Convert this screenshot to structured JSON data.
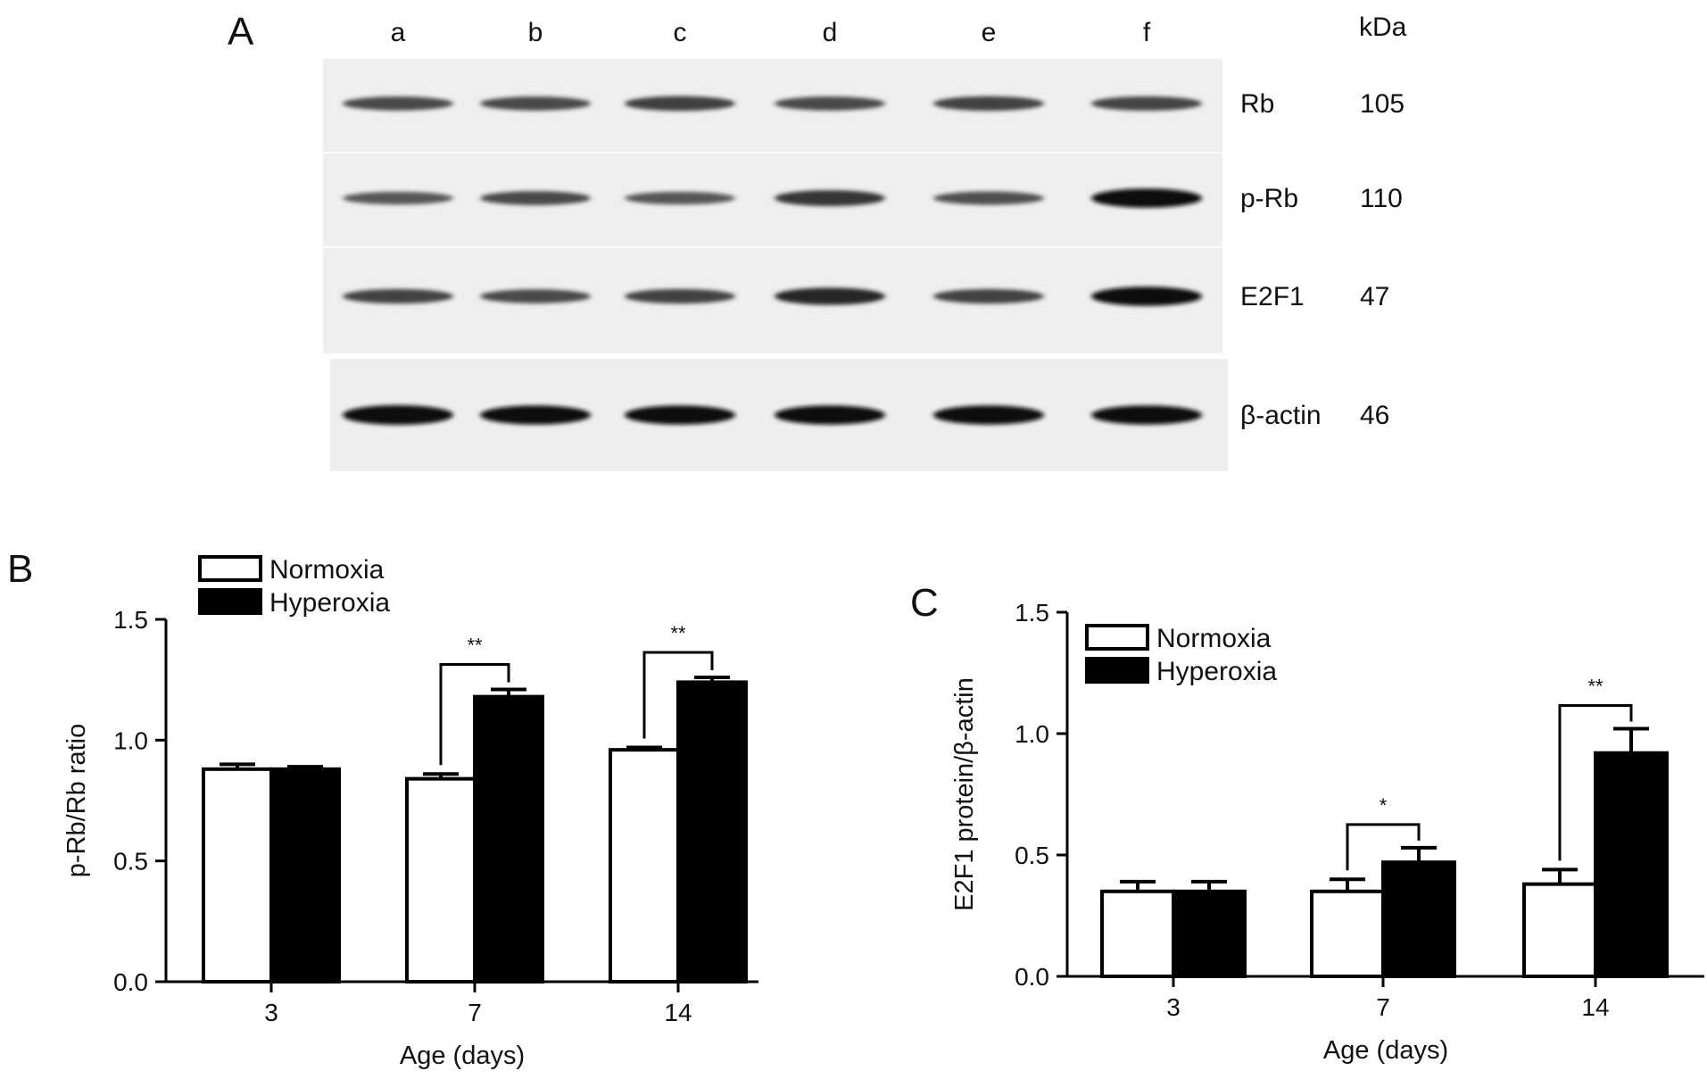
{
  "panel_a": {
    "panel_label": "A",
    "lanes": [
      "a",
      "b",
      "c",
      "d",
      "e",
      "f"
    ],
    "unit_label": "kDa",
    "rows": [
      {
        "protein": "Rb",
        "kda": "105",
        "intensity": [
          0.55,
          0.55,
          0.62,
          0.55,
          0.6,
          0.58
        ]
      },
      {
        "protein": "p-Rb",
        "kda": "110",
        "intensity": [
          0.45,
          0.55,
          0.45,
          0.7,
          0.5,
          0.95
        ]
      },
      {
        "protein": "E2F1",
        "kda": "47",
        "intensity": [
          0.6,
          0.55,
          0.6,
          0.8,
          0.6,
          0.95
        ]
      },
      {
        "protein": "β-actin",
        "kda": "46",
        "intensity": [
          1.0,
          0.95,
          0.95,
          0.95,
          0.95,
          0.95
        ]
      }
    ]
  },
  "chart_data": [
    {
      "panel_label": "B",
      "type": "bar",
      "categories": [
        "3",
        "7",
        "14"
      ],
      "xlabel": "Age (days)",
      "ylabel": "p-Rb/Rb ratio",
      "ylim": [
        0,
        1.5
      ],
      "yticks": [
        "0.0",
        "0.5",
        "1.0",
        "1.5"
      ],
      "legend_position": "top-left",
      "series": [
        {
          "name": "Normoxia",
          "fill": "#ffffff",
          "values": [
            0.88,
            0.84,
            0.96
          ],
          "errors": [
            0.02,
            0.02,
            0.01
          ]
        },
        {
          "name": "Hyperoxia",
          "fill": "#000000",
          "values": [
            0.88,
            1.18,
            1.24
          ],
          "errors": [
            0.01,
            0.03,
            0.02
          ]
        }
      ],
      "significance": [
        {
          "category_index": 1,
          "label": "**"
        },
        {
          "category_index": 2,
          "label": "**"
        }
      ]
    },
    {
      "panel_label": "C",
      "type": "bar",
      "categories": [
        "3",
        "7",
        "14"
      ],
      "xlabel": "Age (days)",
      "ylabel": "E2F1 protein/β-actin",
      "ylim": [
        0,
        1.5
      ],
      "yticks": [
        "0.0",
        "0.5",
        "1.0",
        "1.5"
      ],
      "legend_position": "top-left",
      "series": [
        {
          "name": "Normoxia",
          "fill": "#ffffff",
          "values": [
            0.35,
            0.35,
            0.38
          ],
          "errors": [
            0.04,
            0.05,
            0.06
          ]
        },
        {
          "name": "Hyperoxia",
          "fill": "#000000",
          "values": [
            0.35,
            0.47,
            0.92
          ],
          "errors": [
            0.04,
            0.06,
            0.1
          ]
        }
      ],
      "significance": [
        {
          "category_index": 1,
          "label": "*"
        },
        {
          "category_index": 2,
          "label": "**"
        }
      ]
    }
  ]
}
